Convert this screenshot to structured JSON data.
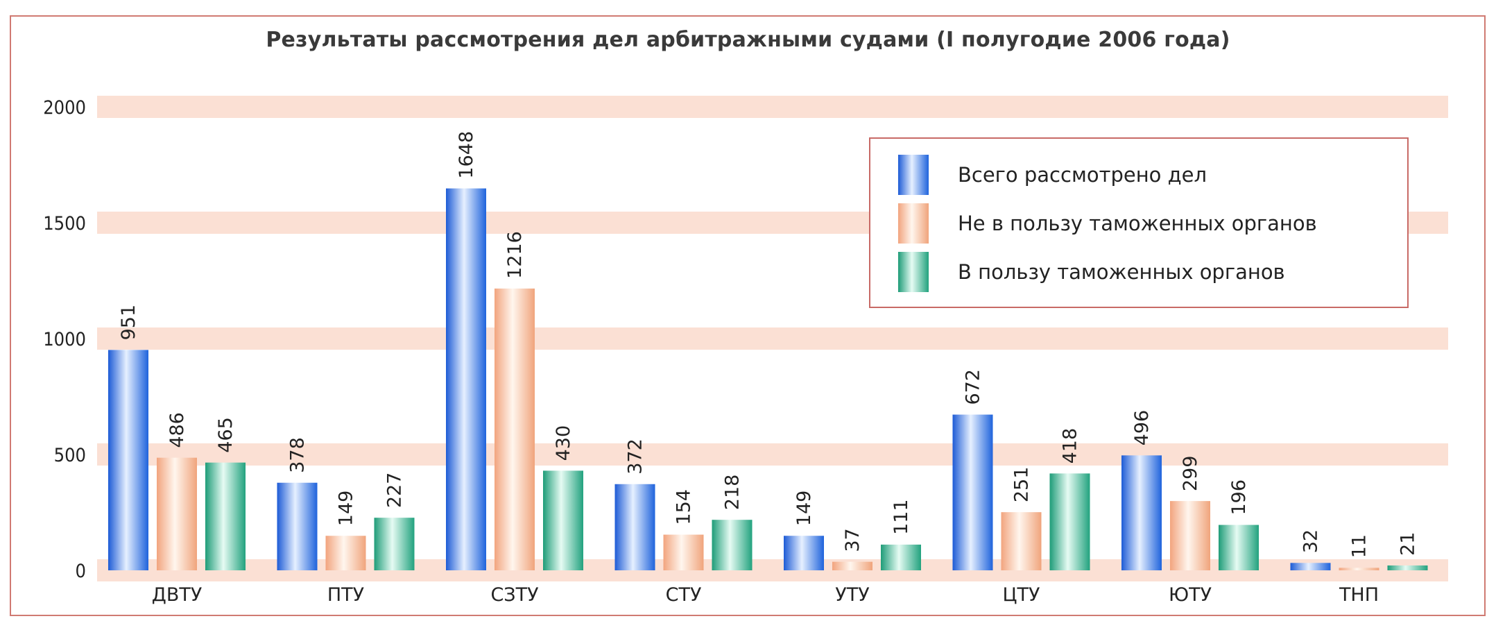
{
  "chart_data": {
    "type": "bar",
    "title": "Результаты рассмотрения дел арбитражными судами (I полугодие 2006 года)",
    "categories": [
      "ДВТУ",
      "ПТУ",
      "СЗТУ",
      "СТУ",
      "УТУ",
      "ЦТУ",
      "ЮТУ",
      "ТНП"
    ],
    "series": [
      {
        "name": "Всего рассмотрено дел",
        "color": "#2a73e0",
        "values": [
          951,
          378,
          1648,
          372,
          149,
          672,
          496,
          32
        ]
      },
      {
        "name": "Не в пользу таможенных органов",
        "color": "#f4b08a",
        "values": [
          486,
          149,
          1216,
          154,
          37,
          251,
          299,
          11
        ]
      },
      {
        "name": "В пользу таможенных органов",
        "color": "#27a884",
        "values": [
          465,
          227,
          430,
          218,
          111,
          418,
          196,
          21
        ]
      }
    ],
    "ylim": [
      0,
      2000
    ],
    "yticks": [
      0,
      500,
      1000,
      1500,
      2000
    ],
    "grid": true,
    "legend": "top-right"
  }
}
